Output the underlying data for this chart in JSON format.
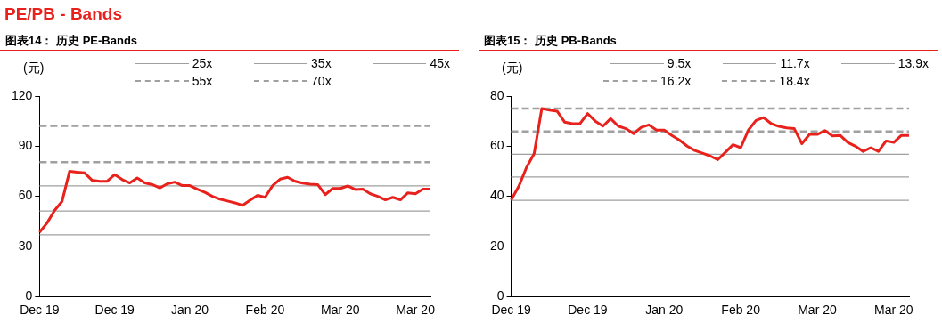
{
  "chart_data": [
    {
      "type": "line",
      "title": "PE/PB - Bands",
      "subtitle": "图表14： 历史 PE-Bands",
      "ylabel": "(元)",
      "legend": "top",
      "categories": [
        "Dec 19",
        null,
        null,
        null,
        null,
        null,
        null,
        null,
        null,
        null,
        "Dec 19",
        null,
        null,
        null,
        null,
        null,
        null,
        null,
        null,
        null,
        "Jan 20",
        null,
        null,
        null,
        null,
        null,
        null,
        null,
        null,
        null,
        "Feb 20",
        null,
        null,
        null,
        null,
        null,
        null,
        null,
        null,
        null,
        "Mar 20",
        null,
        null,
        null,
        null,
        null,
        null,
        null,
        null,
        null,
        "Mar 20",
        null,
        null
      ],
      "ylim": [
        0,
        120
      ],
      "yticks": [
        0,
        30,
        60,
        90,
        120
      ],
      "series": [
        {
          "color": "#e8211c",
          "values": [
            38.5,
            44,
            51.5,
            57,
            75,
            74.4,
            74,
            69.6,
            69,
            69,
            73,
            70,
            68,
            71,
            68,
            67,
            65,
            67.5,
            68.5,
            66.4,
            66.4,
            64.3,
            62.4,
            60,
            58.3,
            57.2,
            56.1,
            54.6,
            57.6,
            60.6,
            59.4,
            66.4,
            70.3,
            71.4,
            69,
            67.9,
            67.3,
            67,
            61,
            64.7,
            64.7,
            66.2,
            64.1,
            64.3,
            61.5,
            60,
            57.9,
            59.4,
            57.9,
            62.1,
            61.5,
            64.3,
            64.3
          ]
        },
        {
          "name": "25x",
          "color": "#a0a0a0",
          "line_style": "solid",
          "values": [
            36.9,
            36.9,
            36.9,
            36.9,
            36.9,
            36.9,
            36.9,
            36.9,
            36.9,
            36.9,
            36.9,
            36.9,
            36.9,
            36.9,
            36.9,
            36.9,
            36.9,
            36.9,
            36.9,
            36.9,
            36.9,
            36.9,
            36.9,
            36.9,
            36.9,
            36.9,
            36.9,
            36.9,
            36.9,
            36.9,
            36.9,
            36.9,
            36.9,
            36.9,
            36.9,
            36.9,
            36.9,
            36.9,
            36.9,
            36.9,
            36.9,
            36.9,
            36.9,
            36.9,
            36.9,
            36.9,
            36.9,
            36.9,
            36.9,
            36.9,
            36.9,
            36.9,
            36.9
          ]
        },
        {
          "name": "35x",
          "color": "#a0a0a0",
          "line_style": "solid",
          "values": [
            51.2,
            51.2,
            51.2,
            51.2,
            51.2,
            51.2,
            51.2,
            51.2,
            51.2,
            51.2,
            51.2,
            51.2,
            51.2,
            51.2,
            51.2,
            51.2,
            51.2,
            51.2,
            51.2,
            51.2,
            51.2,
            51.2,
            51.2,
            51.2,
            51.2,
            51.2,
            51.2,
            51.2,
            51.2,
            51.2,
            51.2,
            51.2,
            51.2,
            51.2,
            51.2,
            51.2,
            51.2,
            51.2,
            51.2,
            51.2,
            51.2,
            51.2,
            51.2,
            51.2,
            51.2,
            51.2,
            51.2,
            51.2,
            51.2,
            51.2,
            51.2,
            51.2,
            51.2
          ]
        },
        {
          "name": "45x",
          "color": "#a0a0a0",
          "line_style": "solid",
          "values": [
            66.2,
            66.2,
            66.2,
            66.2,
            66.2,
            66.2,
            66.2,
            66.2,
            66.2,
            66.2,
            66.2,
            66.2,
            66.2,
            66.2,
            66.2,
            66.2,
            66.2,
            66.2,
            66.2,
            66.2,
            66.2,
            66.2,
            66.2,
            66.2,
            66.2,
            66.2,
            66.2,
            66.2,
            66.2,
            66.2,
            66.2,
            66.2,
            66.2,
            66.2,
            66.2,
            66.2,
            66.2,
            66.2,
            66.2,
            66.2,
            66.2,
            66.2,
            66.2,
            66.2,
            66.2,
            66.2,
            66.2,
            66.2,
            66.2,
            66.2,
            66.2,
            66.2,
            66.2
          ]
        },
        {
          "name": "55x",
          "color": "#a0a0a0",
          "line_style": "dashed",
          "values": [
            80.4,
            80.4,
            80.4,
            80.4,
            80.4,
            80.4,
            80.4,
            80.4,
            80.4,
            80.4,
            80.4,
            80.4,
            80.4,
            80.4,
            80.4,
            80.4,
            80.4,
            80.4,
            80.4,
            80.4,
            80.4,
            80.4,
            80.4,
            80.4,
            80.4,
            80.4,
            80.4,
            80.4,
            80.4,
            80.4,
            80.4,
            80.4,
            80.4,
            80.4,
            80.4,
            80.4,
            80.4,
            80.4,
            80.4,
            80.4,
            80.4,
            80.4,
            80.4,
            80.4,
            80.4,
            80.4,
            80.4,
            80.4,
            80.4,
            80.4,
            80.4,
            80.4,
            80.4
          ]
        },
        {
          "name": "70x",
          "color": "#a0a0a0",
          "line_style": "dashed",
          "values": [
            102.2,
            102.2,
            102.2,
            102.2,
            102.2,
            102.2,
            102.2,
            102.2,
            102.2,
            102.2,
            102.2,
            102.2,
            102.2,
            102.2,
            102.2,
            102.2,
            102.2,
            102.2,
            102.2,
            102.2,
            102.2,
            102.2,
            102.2,
            102.2,
            102.2,
            102.2,
            102.2,
            102.2,
            102.2,
            102.2,
            102.2,
            102.2,
            102.2,
            102.2,
            102.2,
            102.2,
            102.2,
            102.2,
            102.2,
            102.2,
            102.2,
            102.2,
            102.2,
            102.2,
            102.2,
            102.2,
            102.2,
            102.2,
            102.2,
            102.2,
            102.2,
            102.2,
            102.2
          ]
        }
      ]
    },
    {
      "type": "line",
      "title": "图表15： 历史 PB-Bands",
      "ylabel": "(元)",
      "legend": "top",
      "categories": [
        "Dec 19",
        null,
        null,
        null,
        null,
        null,
        null,
        null,
        null,
        null,
        "Dec 19",
        null,
        null,
        null,
        null,
        null,
        null,
        null,
        null,
        null,
        "Jan 20",
        null,
        null,
        null,
        null,
        null,
        null,
        null,
        null,
        null,
        "Feb 20",
        null,
        null,
        null,
        null,
        null,
        null,
        null,
        null,
        null,
        "Mar 20",
        null,
        null,
        null,
        null,
        null,
        null,
        null,
        null,
        null,
        "Mar 20",
        null,
        null
      ],
      "ylim": [
        0,
        80
      ],
      "yticks": [
        0,
        20,
        40,
        60,
        80
      ],
      "series": [
        {
          "color": "#e8211c",
          "values": [
            38.5,
            44,
            51.5,
            57,
            75,
            74.4,
            74,
            69.6,
            69,
            69,
            73,
            70,
            68,
            71,
            68,
            67,
            65,
            67.5,
            68.5,
            66.4,
            66.4,
            64.3,
            62.4,
            60,
            58.3,
            57.2,
            56.1,
            54.6,
            57.6,
            60.6,
            59.4,
            66.4,
            70.3,
            71.4,
            69,
            67.9,
            67.3,
            67,
            61,
            64.7,
            64.7,
            66.2,
            64.1,
            64.3,
            61.5,
            60,
            57.9,
            59.4,
            57.9,
            62.1,
            61.5,
            64.3,
            64.3
          ]
        },
        {
          "name": "9.5x",
          "color": "#a0a0a0",
          "line_style": "solid",
          "values": [
            38.4,
            38.4,
            38.4,
            38.4,
            38.4,
            38.4,
            38.4,
            38.4,
            38.4,
            38.4,
            38.4,
            38.4,
            38.4,
            38.4,
            38.4,
            38.4,
            38.4,
            38.4,
            38.4,
            38.4,
            38.4,
            38.4,
            38.4,
            38.4,
            38.4,
            38.4,
            38.4,
            38.4,
            38.4,
            38.4,
            38.4,
            38.4,
            38.4,
            38.4,
            38.4,
            38.4,
            38.4,
            38.4,
            38.4,
            38.4,
            38.4,
            38.4,
            38.4,
            38.4,
            38.4,
            38.4,
            38.4,
            38.4,
            38.4,
            38.4,
            38.4,
            38.4,
            38.4
          ]
        },
        {
          "name": "11.7x",
          "color": "#a0a0a0",
          "line_style": "solid",
          "values": [
            47.7,
            47.7,
            47.7,
            47.7,
            47.7,
            47.7,
            47.7,
            47.7,
            47.7,
            47.7,
            47.7,
            47.7,
            47.7,
            47.7,
            47.7,
            47.7,
            47.7,
            47.7,
            47.7,
            47.7,
            47.7,
            47.7,
            47.7,
            47.7,
            47.7,
            47.7,
            47.7,
            47.7,
            47.7,
            47.7,
            47.7,
            47.7,
            47.7,
            47.7,
            47.7,
            47.7,
            47.7,
            47.7,
            47.7,
            47.7,
            47.7,
            47.7,
            47.7,
            47.7,
            47.7,
            47.7,
            47.7,
            47.7,
            47.7,
            47.7,
            47.7,
            47.7,
            47.7
          ]
        },
        {
          "name": "13.9x",
          "color": "#a0a0a0",
          "line_style": "solid",
          "values": [
            56.8,
            56.8,
            56.8,
            56.8,
            56.8,
            56.8,
            56.8,
            56.8,
            56.8,
            56.8,
            56.8,
            56.8,
            56.8,
            56.8,
            56.8,
            56.8,
            56.8,
            56.8,
            56.8,
            56.8,
            56.8,
            56.8,
            56.8,
            56.8,
            56.8,
            56.8,
            56.8,
            56.8,
            56.8,
            56.8,
            56.8,
            56.8,
            56.8,
            56.8,
            56.8,
            56.8,
            56.8,
            56.8,
            56.8,
            56.8,
            56.8,
            56.8,
            56.8,
            56.8,
            56.8,
            56.8,
            56.8,
            56.8,
            56.8,
            56.8,
            56.8,
            56.8,
            56.8
          ]
        },
        {
          "name": "16.2x",
          "color": "#a0a0a0",
          "line_style": "dashed",
          "values": [
            65.9,
            65.9,
            65.9,
            65.9,
            65.9,
            65.9,
            65.9,
            65.9,
            65.9,
            65.9,
            65.9,
            65.9,
            65.9,
            65.9,
            65.9,
            65.9,
            65.9,
            65.9,
            65.9,
            65.9,
            65.9,
            65.9,
            65.9,
            65.9,
            65.9,
            65.9,
            65.9,
            65.9,
            65.9,
            65.9,
            65.9,
            65.9,
            65.9,
            65.9,
            65.9,
            65.9,
            65.9,
            65.9,
            65.9,
            65.9,
            65.9,
            65.9,
            65.9,
            65.9,
            65.9,
            65.9,
            65.9,
            65.9,
            65.9,
            65.9,
            65.9,
            65.9,
            65.9
          ]
        },
        {
          "name": "18.4x",
          "color": "#a0a0a0",
          "line_style": "dashed",
          "values": [
            75,
            75,
            75,
            75,
            75,
            75,
            75,
            75,
            75,
            75,
            75,
            75,
            75,
            75,
            75,
            75,
            75,
            75,
            75,
            75,
            75,
            75,
            75,
            75,
            75,
            75,
            75,
            75,
            75,
            75,
            75,
            75,
            75,
            75,
            75,
            75,
            75,
            75,
            75,
            75,
            75,
            75,
            75,
            75,
            75,
            75,
            75,
            75,
            75,
            75,
            75,
            75,
            75
          ]
        }
      ]
    }
  ]
}
